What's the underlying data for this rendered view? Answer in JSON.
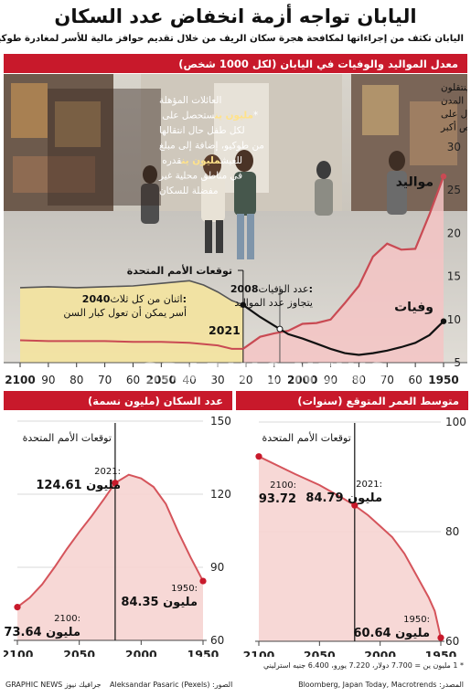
{
  "header": {
    "title": "اليابان تواجه أزمة انخفاض عدد السكان",
    "subtitle": "اليابان تكثف من إجراءاتها لمكافحة هجرة سكان الريف من خلال تقديم حوافز مالية للأسر لمغادرة طوكيو"
  },
  "main_chart": {
    "heading": "معدل المواليد والوفيات في اليابان (لكل 1000 شخص)",
    "births_label": "مواليد",
    "deaths_label": "وفيات",
    "un_label": "توقعات الأمم المتحدة",
    "year_2021": "2021",
    "note_2008_bold": "2008:",
    "note_2008_rest": " عدد الوفيات",
    "note_2008_line2": "يتجاوز عدد المواليد",
    "note_2040_bold": "2040:",
    "note_2040_rest": " اثنان من كل ثلاث",
    "note_2040_line2": "أسر يمكن أن تعول كبار السن",
    "youth_lines": [
      "الشباب ينتقلون",
      "إلى المدن",
      "للحصول على",
      "فرص أكبر"
    ],
    "families_lines": [
      "العائلات المؤهلة",
      "ستحصل على [مليون ين]*",
      "لكل طفل حال انتقالها",
      "من طوكيو، إضافة إلى مبلغ",
      "قدره [مليون ين] للعيش",
      "في مناطق محلية غير",
      "مفضلة للسكان"
    ]
  },
  "age_chart": {
    "heading": "متوسط العمر المتوقع (سنوات)",
    "un_label": "توقعات الأمم المتحدة",
    "label_2100_year": "2100:",
    "label_2100_value": "93.72",
    "label_2021_year": "2021:",
    "label_2021_value": "84.79 مليون",
    "label_1950_year": "1950:",
    "label_1950_value": "60.64 مليون"
  },
  "pop_chart": {
    "heading": "عدد السكان (مليون نسمة)",
    "un_label": "توقعات الأمم المتحدة",
    "label_2021_year": "2021:",
    "label_2021_value": "124.61 مليون",
    "label_1950_year": "1950:",
    "label_1950_value": "84.35 مليون",
    "label_2100_year": "2100:",
    "label_2100_value": "73.64 مليون"
  },
  "watermark": "GRAPHIC NEWS",
  "footer": {
    "note": "* 1 مليون ين = 7.700 دولار، 7.220 يورو، 6.400 جنيه استرليني",
    "source": "المصدر: Bloomberg, Japan Today, Macrotrends",
    "credit": "الصور: (Aleksandar Pasaric (Pexels",
    "brand": "GRAPHIC NEWS جرافيك نيوز"
  },
  "colors": {
    "accent": "#c8192b",
    "births_line": "#c94a53",
    "deaths_line": "#111111",
    "un_fill": "#f3e3a0",
    "pink_fill": "#f4c4c4"
  },
  "chart_data": [
    {
      "type": "line",
      "title": "معدل المواليد والوفيات في اليابان (لكل 1000 شخص)",
      "x_direction": "right-to-left",
      "xlim": [
        1950,
        2100
      ],
      "x_ticks": [
        "1950",
        "60",
        "70",
        "80",
        "90",
        "2000",
        "10",
        "20",
        "30",
        "40",
        "2050",
        "60",
        "70",
        "80",
        "90",
        "2100"
      ],
      "ylim": [
        5,
        30
      ],
      "y_ticks": [
        5,
        10,
        15,
        20,
        25,
        30
      ],
      "series": [
        {
          "name": "مواليد",
          "points": [
            [
              1950,
              26.6
            ],
            [
              1955,
              22.2
            ],
            [
              1960,
              18.2
            ],
            [
              1965,
              18.1
            ],
            [
              1970,
              18.8
            ],
            [
              1975,
              17.3
            ],
            [
              1980,
              13.9
            ],
            [
              1985,
              11.9
            ],
            [
              1990,
              10.0
            ],
            [
              1995,
              9.6
            ],
            [
              2000,
              9.5
            ],
            [
              2005,
              8.7
            ],
            [
              2010,
              8.4
            ],
            [
              2015,
              8.0
            ],
            [
              2021,
              6.6
            ],
            [
              2025,
              6.6
            ],
            [
              2030,
              7.0
            ],
            [
              2040,
              7.3
            ],
            [
              2050,
              7.4
            ],
            [
              2060,
              7.4
            ],
            [
              2070,
              7.5
            ],
            [
              2080,
              7.5
            ],
            [
              2090,
              7.5
            ],
            [
              2100,
              7.6
            ]
          ]
        },
        {
          "name": "وفيات",
          "points": [
            [
              1950,
              9.8
            ],
            [
              1955,
              8.2
            ],
            [
              1960,
              7.3
            ],
            [
              1965,
              6.8
            ],
            [
              1970,
              6.4
            ],
            [
              1975,
              6.1
            ],
            [
              1980,
              5.9
            ],
            [
              1985,
              6.1
            ],
            [
              1990,
              6.6
            ],
            [
              1995,
              7.2
            ],
            [
              2000,
              7.8
            ],
            [
              2005,
              8.3
            ],
            [
              2010,
              9.3
            ],
            [
              2015,
              10.3
            ],
            [
              2021,
              11.7
            ],
            [
              2025,
              12.2
            ],
            [
              2030,
              13.2
            ],
            [
              2035,
              14.0
            ],
            [
              2040,
              14.5
            ],
            [
              2050,
              14.2
            ],
            [
              2060,
              13.9
            ],
            [
              2070,
              13.8
            ],
            [
              2080,
              13.7
            ],
            [
              2090,
              13.8
            ],
            [
              2100,
              13.7
            ]
          ]
        }
      ],
      "projection_start": 2021,
      "annotations": [
        "2008",
        "2021",
        "2040"
      ]
    },
    {
      "type": "line",
      "title": "متوسط العمر المتوقع (سنوات)",
      "x_direction": "right-to-left",
      "xlim": [
        1950,
        2100
      ],
      "x_ticks": [
        "1950",
        "2000",
        "2050",
        "2100"
      ],
      "ylim": [
        60,
        100
      ],
      "y_ticks": [
        60,
        80,
        100
      ],
      "series": [
        {
          "name": "متوسط العمر المتوقع",
          "points": [
            [
              1950,
              60.64
            ],
            [
              1955,
              65.5
            ],
            [
              1960,
              68.0
            ],
            [
              1970,
              72.0
            ],
            [
              1980,
              76.0
            ],
            [
              1990,
              79.0
            ],
            [
              2000,
              81.0
            ],
            [
              2010,
              83.0
            ],
            [
              2021,
              84.79
            ],
            [
              2030,
              86.0
            ],
            [
              2050,
              88.5
            ],
            [
              2070,
              90.5
            ],
            [
              2100,
              93.72
            ]
          ]
        }
      ],
      "projection_start": 2021
    },
    {
      "type": "area",
      "title": "عدد السكان (مليون نسمة)",
      "x_direction": "right-to-left",
      "xlim": [
        1950,
        2100
      ],
      "x_ticks": [
        "1950",
        "2000",
        "2050",
        "2100"
      ],
      "ylim": [
        60,
        150
      ],
      "y_ticks": [
        60,
        90,
        120,
        150
      ],
      "series": [
        {
          "name": "عدد السكان",
          "points": [
            [
              1950,
              84.35
            ],
            [
              1960,
              94.0
            ],
            [
              1970,
              104.5
            ],
            [
              1980,
              116.0
            ],
            [
              1990,
              123.0
            ],
            [
              2000,
              126.5
            ],
            [
              2010,
              128.0
            ],
            [
              2021,
              124.61
            ],
            [
              2030,
              118.0
            ],
            [
              2040,
              111.0
            ],
            [
              2050,
              104.5
            ],
            [
              2060,
              97.5
            ],
            [
              2070,
              90.0
            ],
            [
              2080,
              83.0
            ],
            [
              2090,
              77.5
            ],
            [
              2100,
              73.64
            ]
          ]
        }
      ],
      "projection_start": 2021
    }
  ]
}
